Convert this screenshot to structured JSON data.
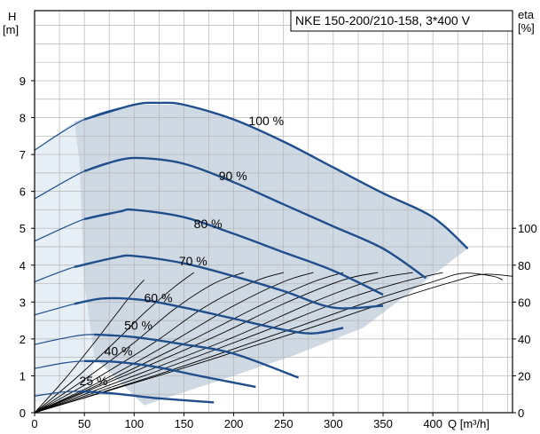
{
  "chart_data": {
    "type": "line",
    "title": "NKE 150-200/210-158, 3*400 V",
    "xlabel": "Q [m³/h]",
    "ylabel_left_name": "H",
    "ylabel_left_unit": "[m]",
    "ylabel_right_name": "eta",
    "ylabel_right_unit": "[%]",
    "xlim": [
      0,
      480
    ],
    "ylim": [
      0,
      10.9
    ],
    "x_ticks": [
      "0",
      "50",
      "100",
      "150",
      "200",
      "250",
      "300",
      "350",
      "400"
    ],
    "y_ticks": [
      "0",
      "1",
      "2",
      "3",
      "4",
      "5",
      "6",
      "7",
      "8",
      "9"
    ],
    "eta_ticks": [
      "0",
      "20",
      "40",
      "60",
      "80",
      "100"
    ],
    "grid": true,
    "colors": {
      "curve": "#1f4e8c",
      "region": "#cfd9e4",
      "region_light": "#e6eef6",
      "grid": "#b5b5b5",
      "efficiency": "#000000"
    },
    "series": [
      {
        "name": "100 %",
        "label_at": [
          215,
          7.8
        ],
        "points": [
          [
            0,
            7.12
          ],
          [
            50,
            7.95
          ],
          [
            100,
            8.35
          ],
          [
            125,
            8.4
          ],
          [
            150,
            8.35
          ],
          [
            200,
            7.95
          ],
          [
            250,
            7.35
          ],
          [
            300,
            6.65
          ],
          [
            350,
            5.95
          ],
          [
            400,
            5.3
          ],
          [
            435,
            4.45
          ]
        ]
      },
      {
        "name": "90 %",
        "label_at": [
          185,
          6.3
        ],
        "points": [
          [
            0,
            5.8
          ],
          [
            50,
            6.55
          ],
          [
            85,
            6.85
          ],
          [
            110,
            6.9
          ],
          [
            150,
            6.75
          ],
          [
            200,
            6.25
          ],
          [
            250,
            5.65
          ],
          [
            300,
            5.05
          ],
          [
            350,
            4.45
          ],
          [
            393,
            3.65
          ]
        ]
      },
      {
        "name": "80 %",
        "label_at": [
          160,
          5.0
        ],
        "points": [
          [
            0,
            4.65
          ],
          [
            50,
            5.25
          ],
          [
            85,
            5.45
          ],
          [
            100,
            5.5
          ],
          [
            150,
            5.3
          ],
          [
            200,
            4.85
          ],
          [
            250,
            4.35
          ],
          [
            300,
            3.85
          ],
          [
            350,
            3.2
          ]
        ]
      },
      {
        "name": "70 %",
        "label_at": [
          145,
          4.0
        ],
        "points": [
          [
            0,
            3.55
          ],
          [
            40,
            3.95
          ],
          [
            80,
            4.2
          ],
          [
            100,
            4.25
          ],
          [
            150,
            4.05
          ],
          [
            200,
            3.7
          ],
          [
            250,
            3.3
          ],
          [
            300,
            2.85
          ],
          [
            350,
            2.9
          ]
        ]
      },
      {
        "name": "60 %",
        "label_at": [
          110,
          3.0
        ],
        "points": [
          [
            0,
            2.65
          ],
          [
            40,
            2.95
          ],
          [
            70,
            3.1
          ],
          [
            110,
            3.05
          ],
          [
            150,
            2.85
          ],
          [
            200,
            2.55
          ],
          [
            250,
            2.25
          ],
          [
            280,
            2.15
          ],
          [
            310,
            2.3
          ]
        ]
      },
      {
        "name": "50 %",
        "label_at": [
          90,
          2.25
        ],
        "points": [
          [
            0,
            1.85
          ],
          [
            35,
            2.05
          ],
          [
            60,
            2.12
          ],
          [
            100,
            2.05
          ],
          [
            150,
            1.85
          ],
          [
            200,
            1.6
          ],
          [
            265,
            0.95
          ]
        ]
      },
      {
        "name": "40 %",
        "label_at": [
          70,
          1.55
        ],
        "points": [
          [
            0,
            1.2
          ],
          [
            30,
            1.35
          ],
          [
            50,
            1.4
          ],
          [
            80,
            1.38
          ],
          [
            120,
            1.25
          ],
          [
            165,
            1.0
          ],
          [
            222,
            0.7
          ]
        ]
      },
      {
        "name": "25 %",
        "label_at": [
          45,
          0.75
        ],
        "points": [
          [
            0,
            0.45
          ],
          [
            25,
            0.55
          ],
          [
            45,
            0.58
          ],
          [
            80,
            0.52
          ],
          [
            120,
            0.4
          ],
          [
            180,
            0.28
          ]
        ]
      }
    ],
    "efficiency_curves": [
      {
        "points": [
          [
            0,
            0
          ],
          [
            30,
            0.9
          ],
          [
            60,
            1.9
          ],
          [
            80,
            2.6
          ],
          [
            100,
            3.3
          ],
          [
            110,
            3.6
          ]
        ]
      },
      {
        "points": [
          [
            0,
            0
          ],
          [
            40,
            0.9
          ],
          [
            80,
            1.9
          ],
          [
            110,
            2.7
          ],
          [
            140,
            3.4
          ],
          [
            160,
            3.8
          ]
        ]
      },
      {
        "points": [
          [
            0,
            0
          ],
          [
            50,
            0.9
          ],
          [
            100,
            1.9
          ],
          [
            140,
            2.8
          ],
          [
            180,
            3.5
          ],
          [
            210,
            3.8
          ]
        ]
      },
      {
        "points": [
          [
            0,
            0
          ],
          [
            60,
            0.9
          ],
          [
            120,
            1.9
          ],
          [
            170,
            2.85
          ],
          [
            220,
            3.55
          ],
          [
            250,
            3.8
          ]
        ]
      },
      {
        "points": [
          [
            0,
            0
          ],
          [
            70,
            0.9
          ],
          [
            140,
            1.95
          ],
          [
            200,
            2.9
          ],
          [
            250,
            3.55
          ],
          [
            280,
            3.8
          ]
        ]
      },
      {
        "points": [
          [
            0,
            0
          ],
          [
            80,
            0.95
          ],
          [
            160,
            2.0
          ],
          [
            230,
            2.95
          ],
          [
            280,
            3.55
          ],
          [
            310,
            3.8
          ]
        ]
      },
      {
        "points": [
          [
            0,
            0
          ],
          [
            90,
            1.0
          ],
          [
            180,
            2.05
          ],
          [
            250,
            2.95
          ],
          [
            310,
            3.6
          ],
          [
            345,
            3.8
          ]
        ]
      },
      {
        "points": [
          [
            0,
            0
          ],
          [
            100,
            1.0
          ],
          [
            200,
            2.05
          ],
          [
            280,
            3.0
          ],
          [
            340,
            3.6
          ],
          [
            380,
            3.8
          ]
        ]
      },
      {
        "points": [
          [
            0,
            0
          ],
          [
            110,
            1.0
          ],
          [
            220,
            2.1
          ],
          [
            310,
            3.05
          ],
          [
            370,
            3.55
          ],
          [
            410,
            3.8
          ]
        ]
      },
      {
        "points": [
          [
            0,
            0
          ],
          [
            120,
            1.0
          ],
          [
            240,
            2.1
          ],
          [
            340,
            3.05
          ],
          [
            400,
            3.55
          ],
          [
            430,
            3.78
          ],
          [
            460,
            3.7
          ],
          [
            470,
            3.6
          ]
        ]
      },
      {
        "points": [
          [
            0,
            0
          ],
          [
            130,
            1.05
          ],
          [
            260,
            2.15
          ],
          [
            360,
            3.05
          ],
          [
            420,
            3.55
          ],
          [
            450,
            3.75
          ],
          [
            480,
            3.7
          ]
        ]
      }
    ],
    "region": [
      [
        40,
        7.9
      ],
      [
        100,
        8.35
      ],
      [
        150,
        8.35
      ],
      [
        200,
        7.95
      ],
      [
        250,
        7.35
      ],
      [
        300,
        6.65
      ],
      [
        350,
        5.95
      ],
      [
        400,
        5.3
      ],
      [
        435,
        4.45
      ],
      [
        330,
        2.3
      ],
      [
        260,
        1.55
      ],
      [
        200,
        1.0
      ],
      [
        110,
        0.2
      ],
      [
        60,
        1.5
      ],
      [
        50,
        3.5
      ],
      [
        45,
        6.8
      ]
    ],
    "region_light": [
      [
        0,
        7.12
      ],
      [
        40,
        7.9
      ],
      [
        45,
        6.8
      ],
      [
        50,
        3.5
      ],
      [
        60,
        1.5
      ],
      [
        55,
        0.35
      ],
      [
        0,
        0.3
      ]
    ]
  }
}
